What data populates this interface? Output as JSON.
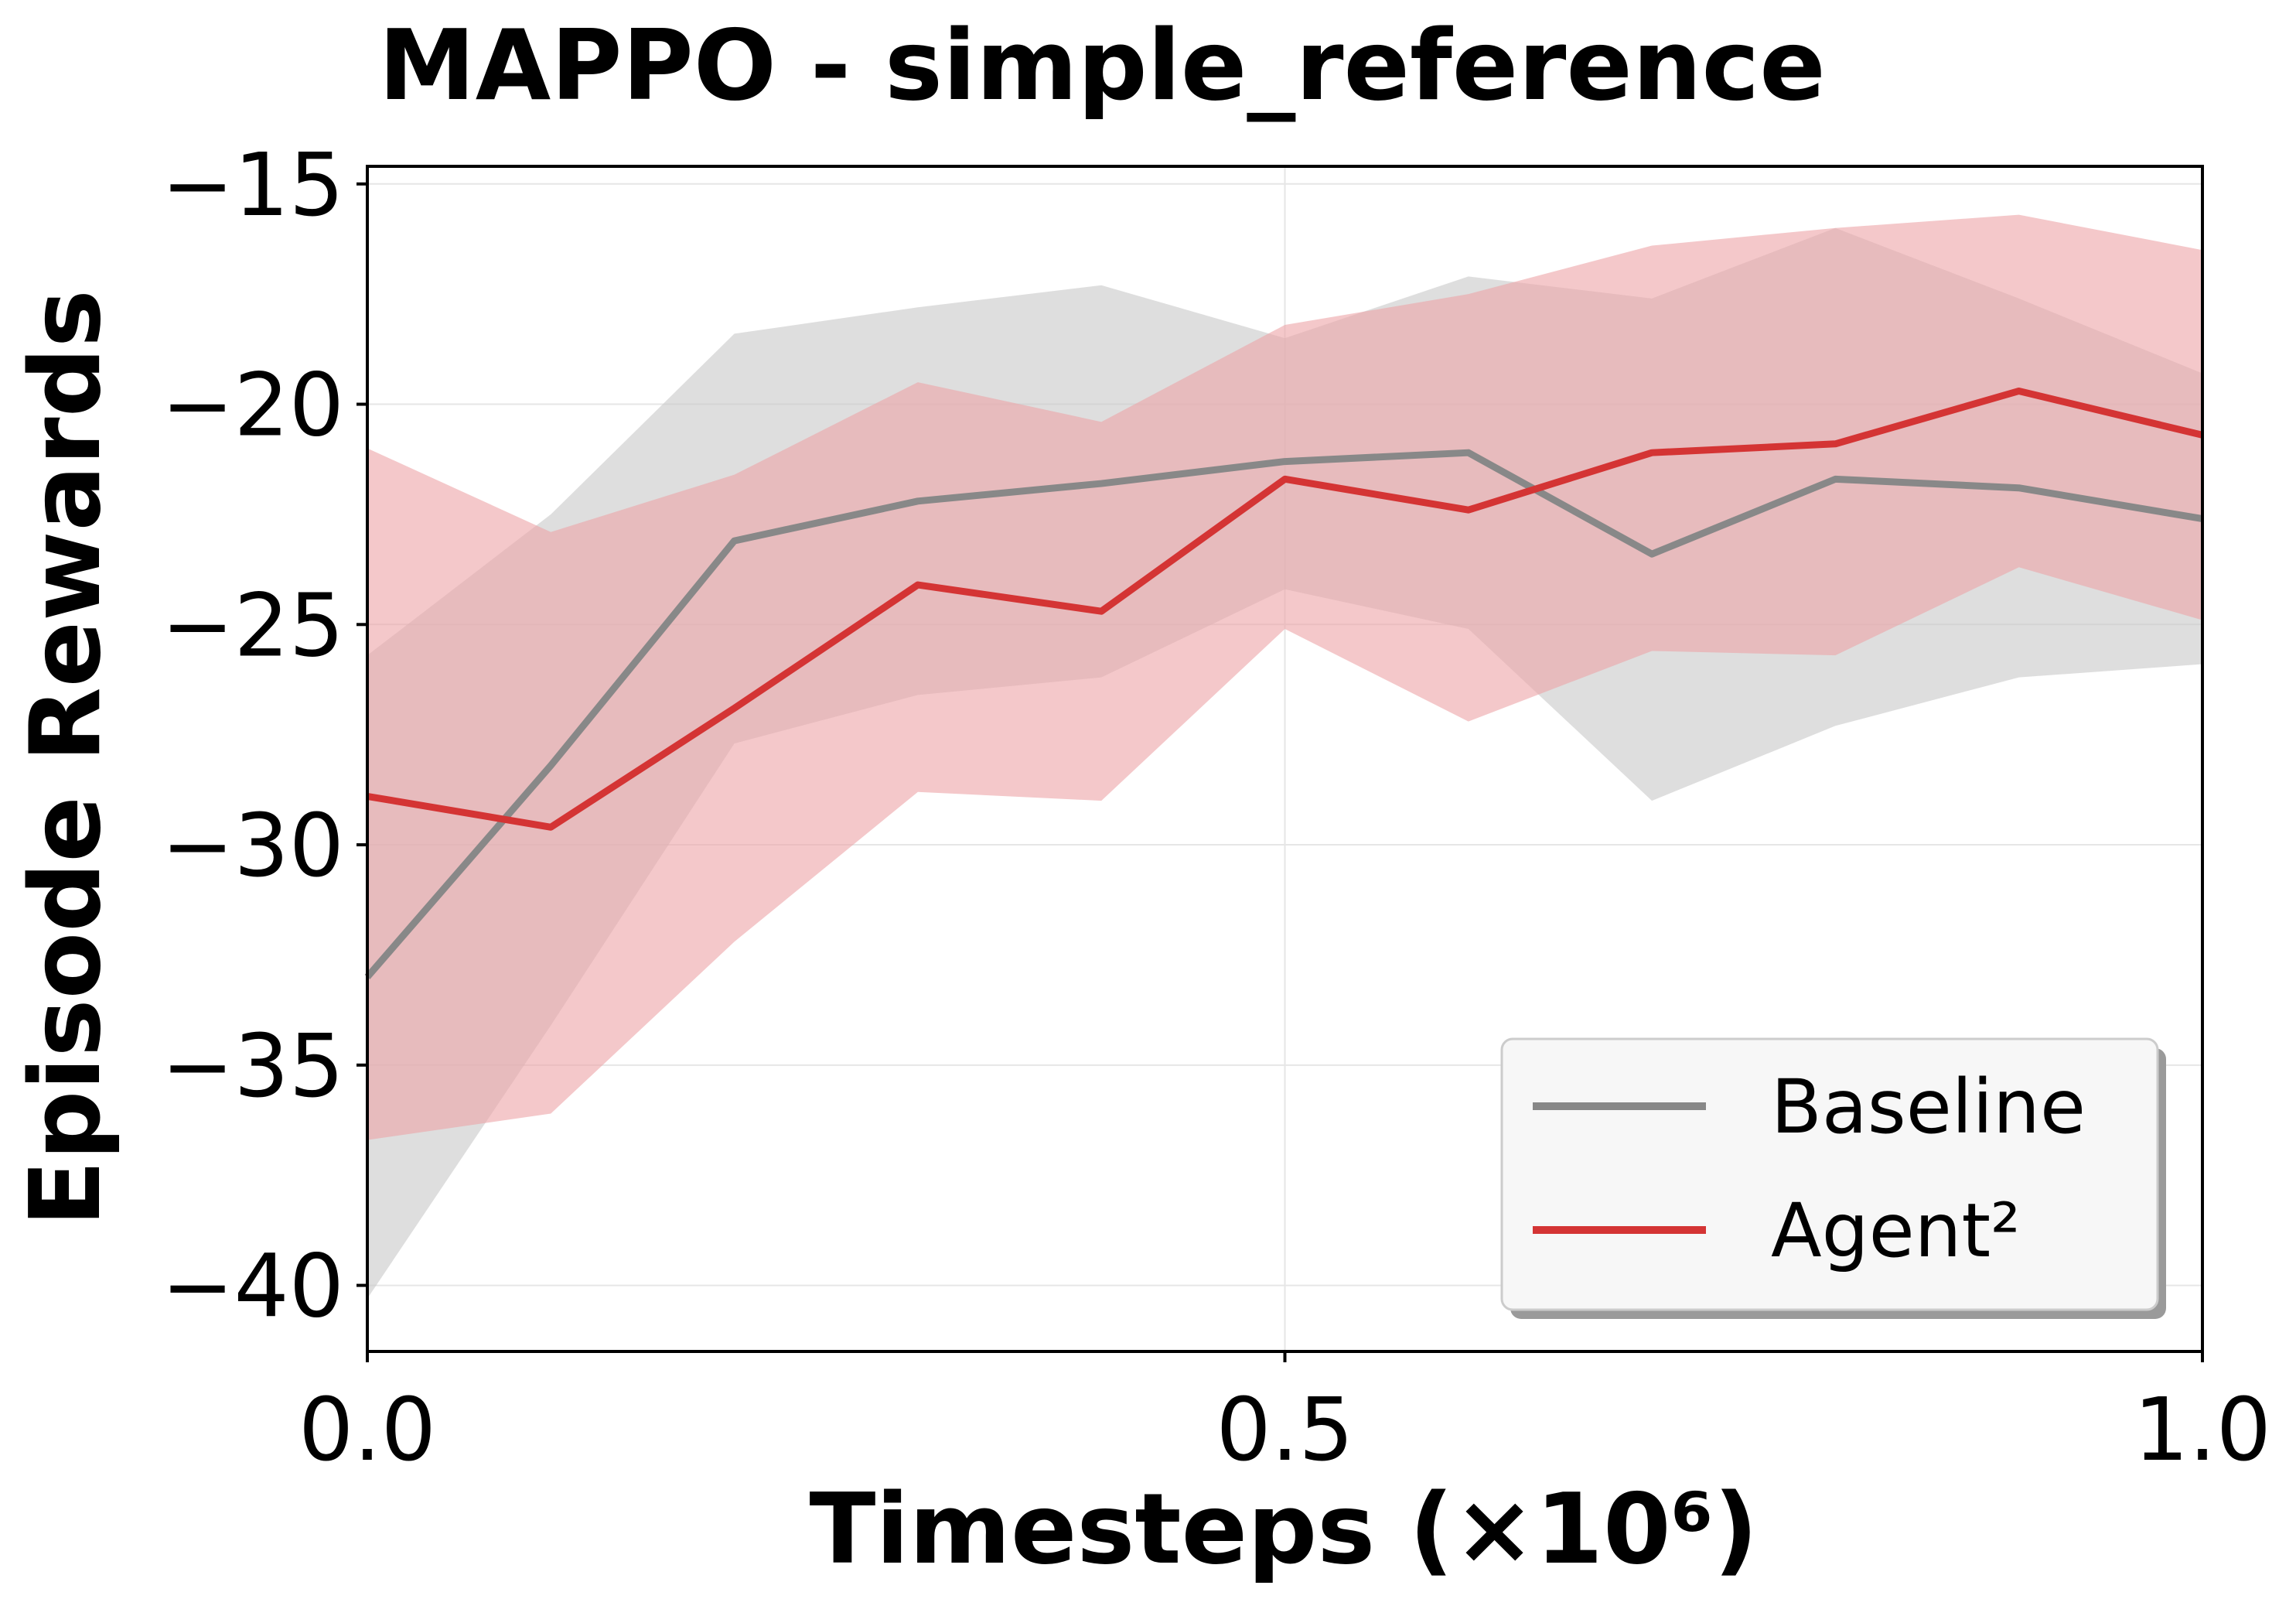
{
  "chart_data": {
    "type": "line",
    "title": "MAPPO - simple_reference",
    "xlabel": "Timesteps (×10⁶)",
    "ylabel": "Episode Rewards",
    "xlim": [
      0.0,
      1.0
    ],
    "ylim": [
      -41.5,
      -14.6
    ],
    "xticks": [
      0.0,
      0.5,
      1.0
    ],
    "xtick_labels": [
      "0.0",
      "0.5",
      "1.0"
    ],
    "yticks": [
      -15,
      -20,
      -25,
      -30,
      -35,
      -40
    ],
    "ytick_labels": [
      "−15",
      "−20",
      "−25",
      "−30",
      "−35",
      "−40"
    ],
    "grid": true,
    "legend_position": "bottom-right",
    "x": [
      0.0,
      0.1,
      0.2,
      0.3,
      0.4,
      0.5,
      0.6,
      0.7,
      0.8,
      0.9,
      1.0
    ],
    "series": [
      {
        "name": "Baseline",
        "color": "#888888",
        "band_color": "#c8c8c8",
        "values": [
          -33.0,
          -28.2,
          -23.1,
          -22.2,
          -21.8,
          -21.3,
          -21.1,
          -23.4,
          -21.7,
          -21.9,
          -22.6
        ],
        "upper": [
          -25.7,
          -22.5,
          -18.4,
          -17.8,
          -17.3,
          -18.5,
          -17.1,
          -17.6,
          -16.0,
          -17.6,
          -19.3
        ],
        "lower": [
          -40.3,
          -34.1,
          -27.7,
          -26.6,
          -26.2,
          -24.2,
          -25.1,
          -29.0,
          -27.3,
          -26.2,
          -25.9
        ]
      },
      {
        "name": "Agent²",
        "color": "#d43434",
        "band_color": "#eda3a6",
        "values": [
          -28.9,
          -29.6,
          -26.9,
          -24.1,
          -24.7,
          -21.7,
          -22.4,
          -21.1,
          -20.9,
          -19.7,
          -20.7
        ],
        "upper": [
          -21.0,
          -22.9,
          -21.6,
          -19.5,
          -20.4,
          -18.2,
          -17.5,
          -16.4,
          -16.0,
          -15.7,
          -16.5
        ],
        "lower": [
          -36.7,
          -36.1,
          -32.2,
          -28.8,
          -29.0,
          -25.1,
          -27.2,
          -25.6,
          -25.7,
          -23.7,
          -24.9
        ]
      }
    ]
  }
}
